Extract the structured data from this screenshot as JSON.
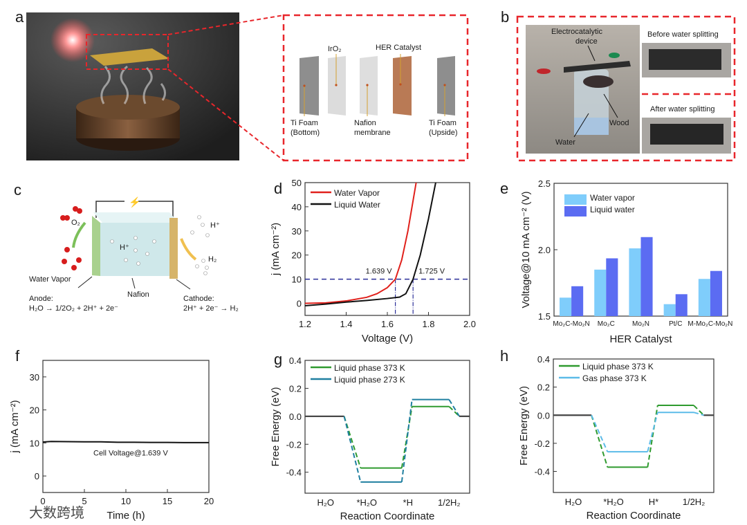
{
  "panel_letters": [
    "a",
    "b",
    "c",
    "d",
    "e",
    "f",
    "g",
    "h"
  ],
  "panel_a": {
    "labels": {
      "ti_bottom": [
        "Ti Foam",
        "(Bottom)"
      ],
      "iro2": "IrO₂",
      "nafion": [
        "Nafion",
        "membrane"
      ],
      "her": "HER Catalyst",
      "ti_upside": [
        "Ti Foam",
        "(Upside)"
      ]
    }
  },
  "panel_b": {
    "electro": [
      "Electrocatalytic",
      "device"
    ],
    "wood": "Wood",
    "water": "Water",
    "before": "Before water splitting",
    "after": "After water splitting"
  },
  "panel_c": {
    "o2": "O₂",
    "hplus_out": "H⁺",
    "hplus_in": "H⁺",
    "h2": "H₂",
    "water_vapor": "Water Vapor",
    "nafion": "Nafion",
    "anode": "Anode:",
    "anode_eq": "H₂O → 1/2O₂ + 2H⁺ + 2e⁻",
    "cathode": "Cathode:",
    "cathode_eq": "2H⁺ + 2e⁻ → H₂",
    "colors": {
      "anode": "#a9d18e",
      "cathode": "#d6b46a",
      "membrane": "#cfe8ea"
    }
  },
  "chart_data": [
    {
      "id": "d",
      "type": "line",
      "xlabel": "Voltage (V)",
      "ylabel": "j (mA cm⁻²)",
      "xlim": [
        1.2,
        2.0
      ],
      "ylim": [
        -5,
        50
      ],
      "xticks": [
        "1.2",
        "1.4",
        "1.6",
        "1.8",
        "2.0"
      ],
      "yticks": [
        "0",
        "10",
        "20",
        "30",
        "40",
        "50"
      ],
      "legend_position": "top-left",
      "series": [
        {
          "name": "Water Vapor",
          "color": "#e0201b",
          "x": [
            1.2,
            1.3,
            1.4,
            1.5,
            1.55,
            1.6,
            1.639,
            1.67,
            1.7,
            1.72,
            1.74
          ],
          "y": [
            0,
            0.2,
            1,
            2.5,
            4,
            6.5,
            10,
            18,
            30,
            40,
            50
          ]
        },
        {
          "name": "Liquid Water",
          "color": "#111111",
          "x": [
            1.2,
            1.3,
            1.4,
            1.5,
            1.6,
            1.66,
            1.69,
            1.725,
            1.76,
            1.8,
            1.835
          ],
          "y": [
            -1,
            -0.3,
            0.5,
            1.2,
            2,
            2.6,
            4,
            10,
            20,
            35,
            50
          ]
        }
      ],
      "reference_line": {
        "y": 10,
        "color": "#2b2f99"
      },
      "annotations": [
        {
          "x": 1.639,
          "text": "1.639 V"
        },
        {
          "x": 1.725,
          "text": "1.725 V"
        }
      ]
    },
    {
      "id": "e",
      "type": "bar",
      "xlabel": "HER Catalyst",
      "ylabel": "Voltage@10 mA cm⁻² (V)",
      "ylim": [
        1.5,
        2.5
      ],
      "yticks": [
        "1.5",
        "2.0",
        "2.5"
      ],
      "categories": [
        "Mo₂C-Mo₂N",
        "Mo₂C",
        "Mo₂N",
        "Pt/C",
        "M-Mo₂C-Mo₂N"
      ],
      "legend_position": "top-left",
      "series": [
        {
          "name": "Water vapor",
          "color": "#7fcdfb",
          "values": [
            1.639,
            1.85,
            2.01,
            1.59,
            1.78
          ]
        },
        {
          "name": "Liquid water",
          "color": "#5b6cf2",
          "values": [
            1.725,
            1.935,
            2.095,
            1.665,
            1.84
          ]
        }
      ]
    },
    {
      "id": "f",
      "type": "line",
      "xlabel": "Time (h)",
      "ylabel": "j (mA cm⁻²)",
      "xlim": [
        0,
        20
      ],
      "ylim": [
        -5,
        35
      ],
      "xticks": [
        "0",
        "5",
        "10",
        "15",
        "20"
      ],
      "yticks": [
        "0",
        "10",
        "20",
        "30"
      ],
      "series": [
        {
          "name": "Cell Voltage@1.639 V",
          "color": "#111111",
          "x": [
            0,
            1,
            3,
            5,
            7,
            9,
            11,
            13,
            15,
            17,
            20
          ],
          "y": [
            10.3,
            10.45,
            10.4,
            10.35,
            10.35,
            10.2,
            10.2,
            10.15,
            10.15,
            10.1,
            10.1
          ]
        }
      ],
      "annotation": "Cell Voltage@1.639 V"
    },
    {
      "id": "g",
      "type": "line",
      "xlabel": "Reaction Coordinate",
      "ylabel": "Free Energy (eV)",
      "ylim": [
        -0.55,
        0.4
      ],
      "yticks": [
        "-0.4",
        "-0.2",
        "0.0",
        "0.2",
        "0.4"
      ],
      "states": [
        "H₂O",
        "*H₂O",
        "*H",
        "1/2H₂"
      ],
      "legend_position": "top-left",
      "series": [
        {
          "name": "Liquid phase 373 K",
          "color": "#2e9a2e",
          "levels": [
            0,
            -0.37,
            0.07,
            0
          ]
        },
        {
          "name": "Liquid phase 273 K",
          "color": "#1f7fa0",
          "levels": [
            0,
            -0.47,
            0.12,
            0
          ]
        }
      ]
    },
    {
      "id": "h",
      "type": "line",
      "xlabel": "Reaction Coordinate",
      "ylabel": "Free Energy (eV)",
      "ylim": [
        -0.55,
        0.4
      ],
      "yticks": [
        "-0.4",
        "-0.2",
        "0.0",
        "0.2",
        "0.4"
      ],
      "states": [
        "H₂O",
        "*H₂O",
        "H*",
        "1/2H₂"
      ],
      "legend_position": "top-left",
      "series": [
        {
          "name": "Liquid phase 373 K",
          "color": "#2e9a2e",
          "levels": [
            0,
            -0.37,
            0.07,
            0
          ]
        },
        {
          "name": "Gas phase 373 K",
          "color": "#5bbbe8",
          "levels": [
            0,
            -0.26,
            0.02,
            0
          ]
        }
      ]
    }
  ],
  "watermark": "大数跨境"
}
